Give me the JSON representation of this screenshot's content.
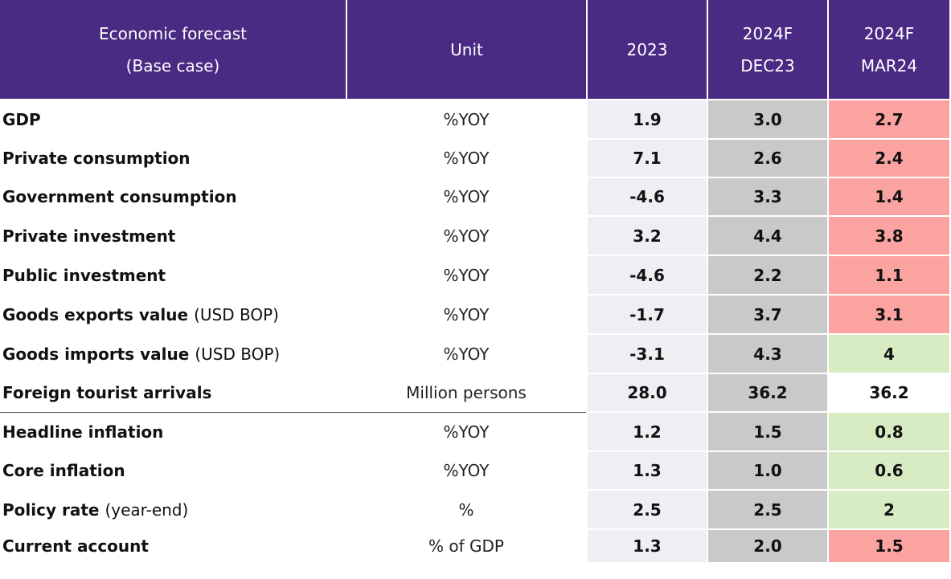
{
  "header": {
    "col_indicator_line1": "Economic forecast",
    "col_indicator_line2": "(Base case)",
    "col_unit": "Unit",
    "col_2023": "2023",
    "col_dec_line1": "2024F",
    "col_dec_line2": "DEC23",
    "col_mar_line1": "2024F",
    "col_mar_line2": "MAR24"
  },
  "colors": {
    "header_bg": "#4b2a84",
    "col_2023_bg": "#efeff3",
    "col_dec_bg": "#c9c9c9",
    "downgrade_bg": "#fba3a1",
    "upgrade_bg": "#d8ecc4"
  },
  "rows": [
    {
      "label": "GDP",
      "sub": "",
      "unit": "%YOY",
      "v2023": "1.9",
      "dec23": "3.0",
      "mar24": "2.7",
      "mar24_color": "red"
    },
    {
      "label": "Private consumption",
      "sub": "",
      "unit": "%YOY",
      "v2023": "7.1",
      "dec23": "2.6",
      "mar24": "2.4",
      "mar24_color": "red"
    },
    {
      "label": "Government consumption",
      "sub": "",
      "unit": "%YOY",
      "v2023": "-4.6",
      "dec23": "3.3",
      "mar24": "1.4",
      "mar24_color": "red"
    },
    {
      "label": "Private investment",
      "sub": "",
      "unit": "%YOY",
      "v2023": "3.2",
      "dec23": "4.4",
      "mar24": "3.8",
      "mar24_color": "red"
    },
    {
      "label": "Public investment",
      "sub": "",
      "unit": "%YOY",
      "v2023": "-4.6",
      "dec23": "2.2",
      "mar24": "1.1",
      "mar24_color": "red"
    },
    {
      "label": "Goods exports value",
      "sub": "(USD BOP)",
      "unit": "%YOY",
      "v2023": "-1.7",
      "dec23": "3.7",
      "mar24": "3.1",
      "mar24_color": "red"
    },
    {
      "label": "Goods imports value",
      "sub": "(USD BOP)",
      "unit": "%YOY",
      "v2023": "-3.1",
      "dec23": "4.3",
      "mar24": "4",
      "mar24_color": "green"
    },
    {
      "label": "Foreign tourist arrivals",
      "sub": "",
      "unit": "Million persons",
      "v2023": "28.0",
      "dec23": "36.2",
      "mar24": "36.2",
      "mar24_color": "white"
    },
    {
      "label": "Headline inflation",
      "sub": "",
      "unit": "%YOY",
      "v2023": "1.2",
      "dec23": "1.5",
      "mar24": "0.8",
      "mar24_color": "green"
    },
    {
      "label": "Core inflation",
      "sub": "",
      "unit": "%YOY",
      "v2023": "1.3",
      "dec23": "1.0",
      "mar24": "0.6",
      "mar24_color": "green"
    },
    {
      "label": "Policy rate",
      "sub": "(year-end)",
      "unit": "%",
      "v2023": "2.5",
      "dec23": "2.5",
      "mar24": "2",
      "mar24_color": "green"
    },
    {
      "label": "Current account",
      "sub": "",
      "unit": "% of GDP",
      "v2023": "1.3",
      "dec23": "2.0",
      "mar24": "1.5",
      "mar24_color": "red"
    }
  ]
}
